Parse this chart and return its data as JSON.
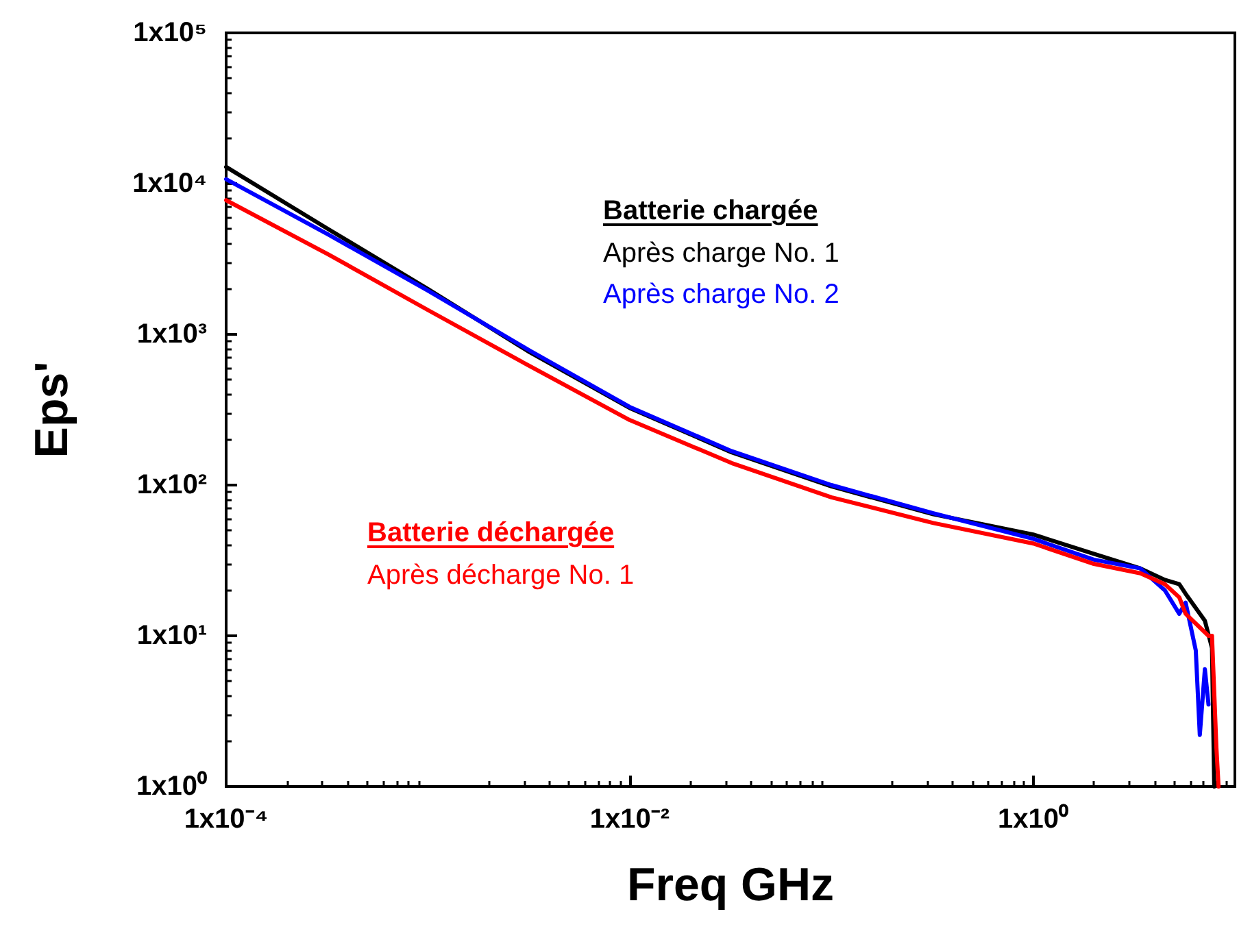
{
  "chart_data": {
    "type": "line",
    "xlabel": "Freq GHz",
    "ylabel": "Eps'",
    "log": "xy",
    "grid": false,
    "legend": false,
    "marker": "none",
    "line_style": "solid",
    "xlim": [
      0.0001,
      10
    ],
    "ylim": [
      1,
      100000
    ],
    "xticks": [
      {
        "value": 0.0001,
        "label": "1x10⁻⁴"
      },
      {
        "value": 0.01,
        "label": "1x10⁻²"
      },
      {
        "value": 1,
        "label": "1x10⁰"
      }
    ],
    "yticks": [
      {
        "value": 1,
        "label": "1x10⁰"
      },
      {
        "value": 10,
        "label": "1x10¹"
      },
      {
        "value": 100,
        "label": "1x10²"
      },
      {
        "value": 1000,
        "label": "1x10³"
      },
      {
        "value": 10000,
        "label": "1x10⁴"
      },
      {
        "value": 100000,
        "label": "1x10⁵"
      }
    ],
    "annotations": [
      "Batterie chargée",
      "Batterie déchargée"
    ],
    "series": [
      {
        "name": "Après charge No. 1",
        "color": "#000000",
        "x": [
          0.0001,
          0.00032,
          0.001,
          0.0032,
          0.01,
          0.032,
          0.1,
          0.32,
          1,
          2.0,
          3.4,
          4.5,
          5.3,
          5.7,
          7.1,
          7.7,
          7.9
        ],
        "values": [
          12900,
          5000,
          2000,
          760,
          325,
          165,
          98,
          64,
          47,
          35,
          28,
          23.5,
          22,
          19,
          12.6,
          8.3,
          1.0
        ]
      },
      {
        "name": "Après charge No. 2",
        "color": "#0000ff",
        "x": [
          0.0001,
          0.00032,
          0.001,
          0.0032,
          0.01,
          0.032,
          0.1,
          0.32,
          1,
          2.0,
          3.4,
          4.5,
          5.3,
          5.7,
          6.4,
          6.7,
          7.1,
          7.4
        ],
        "values": [
          10700,
          4600,
          1950,
          780,
          330,
          168,
          100,
          65,
          44,
          32,
          28,
          20,
          14,
          16.6,
          8,
          2.2,
          6,
          3.5
        ]
      },
      {
        "name": "Après décharge No. 1",
        "color": "#ff0000",
        "x": [
          0.0001,
          0.00032,
          0.001,
          0.0032,
          0.01,
          0.032,
          0.1,
          0.32,
          1,
          2.0,
          3.4,
          4.5,
          5.3,
          5.7,
          7.4,
          7.7,
          8.1,
          8.3
        ],
        "values": [
          7760,
          3400,
          1450,
          615,
          270,
          140,
          83,
          56,
          41,
          30,
          26,
          22,
          18,
          14,
          10,
          10,
          1.8,
          1.0
        ]
      }
    ]
  }
}
